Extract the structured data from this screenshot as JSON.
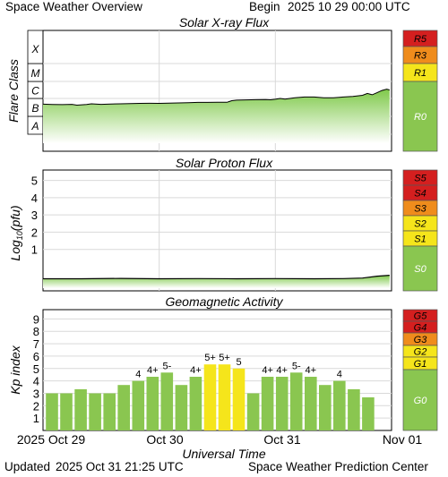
{
  "header": {
    "title": "Space Weather Overview",
    "begin_label": "Begin",
    "begin_value": "2025 10 29 00:00 UTC"
  },
  "footer": {
    "updated_label": "Updated",
    "updated_value": "2025 Oct 31 21:25 UTC",
    "source": "Space Weather Prediction Center"
  },
  "colors": {
    "green": "#8ac650",
    "yellow": "#f5e51b",
    "orange": "#ef8c1c",
    "red": "#d41f1f",
    "grid": "#d9d9d9"
  },
  "chart_data": [
    {
      "type": "area",
      "title": "Solar X-ray Flux",
      "ylabel": "Flare Class",
      "y_scale": "log",
      "y_tick_labels": [
        "A",
        "B",
        "C",
        "M",
        "X"
      ],
      "x_tick_labels": [
        "2025 Oct 29",
        "Oct 30",
        "Oct 31",
        "Nov 01"
      ],
      "x_unit": "hours since 2025-10-29 00:00 UTC",
      "xlim": [
        0,
        72
      ],
      "series": [
        {
          "points": [
            [
              0,
              "B4.8"
            ],
            [
              2,
              "B4.6"
            ],
            [
              4,
              "B4.5"
            ],
            [
              6,
              "B4.7"
            ],
            [
              7,
              "B4.2"
            ],
            [
              9,
              "B4.6"
            ],
            [
              10,
              "B5.0"
            ],
            [
              12,
              "B4.7"
            ],
            [
              14,
              "B4.9"
            ],
            [
              16,
              "B5.0"
            ],
            [
              18,
              "B5.2"
            ],
            [
              20,
              "B5.3"
            ],
            [
              22,
              "B5.4"
            ],
            [
              24,
              "B5.3"
            ],
            [
              26,
              "B5.5"
            ],
            [
              28,
              "B5.6"
            ],
            [
              30,
              "B5.8"
            ],
            [
              32,
              "B6.0"
            ],
            [
              34,
              "B6.0"
            ],
            [
              36,
              "B6.2"
            ],
            [
              38,
              "B6.1"
            ],
            [
              39,
              "B7.5"
            ],
            [
              40,
              "B8.0"
            ],
            [
              42,
              "B8.3"
            ],
            [
              44,
              "B8.5"
            ],
            [
              46,
              "B8.6"
            ],
            [
              47,
              "B8.4"
            ],
            [
              48,
              "B9.0"
            ],
            [
              49,
              "C1.0"
            ],
            [
              50,
              "B9.2"
            ],
            [
              52,
              "C1.1"
            ],
            [
              54,
              "C1.2"
            ],
            [
              56,
              "C1.2"
            ],
            [
              58,
              "C1.1"
            ],
            [
              60,
              "C1.1"
            ],
            [
              62,
              "C1.2"
            ],
            [
              64,
              "C1.3"
            ],
            [
              66,
              "C1.5"
            ],
            [
              67,
              "C1.9"
            ],
            [
              68,
              "C1.6"
            ],
            [
              69,
              "C2.1"
            ],
            [
              70,
              "C2.8"
            ],
            [
              71,
              "C3.3"
            ],
            [
              71.6,
              "C3.0"
            ]
          ]
        }
      ],
      "scale_labels": [
        "R5",
        "R3",
        "R1",
        "R0"
      ]
    },
    {
      "type": "area",
      "title": "Solar Proton Flux",
      "ylabel_main": "Log",
      "ylabel_sub": "10",
      "ylabel_rest": "(pfu)",
      "y_tick_labels": [
        "1",
        "2",
        "3",
        "4",
        "5"
      ],
      "ylim": [
        -1.4,
        5.6
      ],
      "xlim": [
        0,
        72
      ],
      "series": [
        {
          "points": [
            [
              0,
              -0.7
            ],
            [
              8,
              -0.7
            ],
            [
              16,
              -0.68
            ],
            [
              24,
              -0.7
            ],
            [
              32,
              -0.69
            ],
            [
              40,
              -0.7
            ],
            [
              48,
              -0.69
            ],
            [
              56,
              -0.7
            ],
            [
              62,
              -0.69
            ],
            [
              66,
              -0.66
            ],
            [
              69,
              -0.55
            ],
            [
              71.6,
              -0.5
            ]
          ]
        }
      ],
      "scale_labels": [
        "S5",
        "S4",
        "S3",
        "S2",
        "S1",
        "S0"
      ]
    },
    {
      "type": "bar",
      "title": "Geomagnetic Activity",
      "ylabel": "Kp index",
      "xlabel": "Universal Time",
      "y_tick_labels": [
        "1",
        "2",
        "3",
        "4",
        "5",
        "6",
        "7",
        "8",
        "9"
      ],
      "ylim": [
        0,
        9.75
      ],
      "x_tick_labels": [
        "2025 Oct 29",
        "Oct 30",
        "Oct 31",
        "Nov 01"
      ],
      "values": [
        3,
        3,
        3.33,
        3,
        3,
        3.67,
        4,
        4.33,
        4.67,
        3.67,
        4.33,
        5.33,
        5.33,
        5,
        3,
        4.33,
        4.33,
        4.67,
        4.33,
        3.67,
        4,
        3.33,
        2.67
      ],
      "bar_labels": [
        "",
        "",
        "",
        "",
        "",
        "",
        "4",
        "4+",
        "5-",
        "",
        "4+",
        "5+",
        "5+",
        "5",
        "",
        "4+",
        "4+",
        "5-",
        "4+",
        "",
        "4",
        "",
        ""
      ],
      "scale_labels": [
        "G5",
        "G4",
        "G3",
        "G2",
        "G1",
        "G0"
      ]
    }
  ]
}
